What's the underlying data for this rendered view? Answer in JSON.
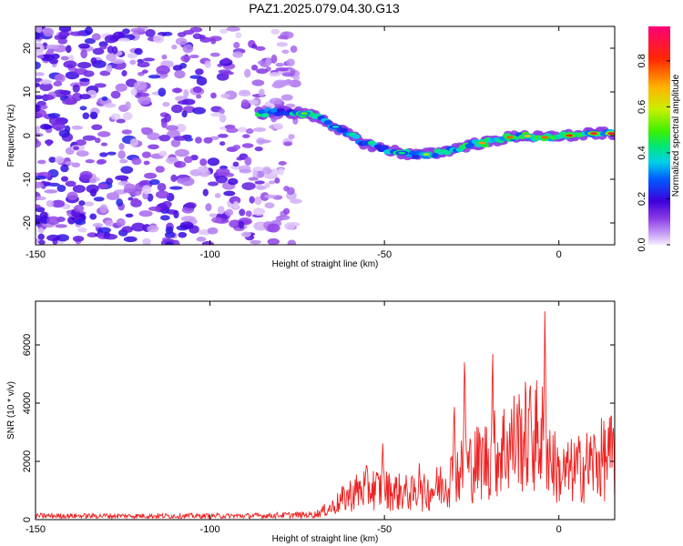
{
  "title": "PAZ1.2025.079.04.30.G13",
  "chart_data": [
    {
      "type": "heatmap",
      "xlabel": "Height of straight line (km)",
      "ylabel": "Frequency (Hz)",
      "xlim": [
        -150,
        16
      ],
      "ylim": [
        -25,
        25
      ],
      "x_ticks": [
        -150,
        -100,
        -50,
        0
      ],
      "y_ticks": [
        -20,
        -10,
        0,
        10,
        20
      ],
      "colorbar": {
        "label": "Normalized spectral amplitude",
        "range": [
          0,
          0.95
        ],
        "ticks": [
          0.0,
          0.2,
          0.4,
          0.6,
          0.8
        ]
      },
      "ridge": {
        "x": [
          -86,
          -80,
          -72,
          -66,
          -60,
          -55,
          -50,
          -45,
          -40,
          -35,
          -30,
          -25,
          -20,
          -15,
          -10,
          -5,
          0,
          5,
          10,
          16
        ],
        "y": [
          5,
          5.5,
          5,
          3,
          0,
          -2,
          -3,
          -4,
          -4.5,
          -4,
          -3,
          -2,
          -1.5,
          -0.5,
          0,
          -0.5,
          0,
          0,
          0.5,
          0.5
        ]
      },
      "noise_region_x": [
        -150,
        -75
      ]
    },
    {
      "type": "line",
      "xlabel": "Height of straight line (km)",
      "ylabel": "SNR (10 * v/v)",
      "xlim": [
        -150,
        16
      ],
      "ylim": [
        0,
        7500
      ],
      "x_ticks": [
        -150,
        -100,
        -50,
        0
      ],
      "y_ticks": [
        0,
        2000,
        4000,
        6000
      ],
      "series": [
        {
          "color": "#ee2222",
          "envelope_x": [
            -150,
            -120,
            -90,
            -70,
            -65,
            -60,
            -55,
            -50,
            -45,
            -40,
            -35,
            -30,
            -25,
            -20,
            -15,
            -10,
            -5,
            0,
            5,
            10,
            16
          ],
          "envelope_y": [
            150,
            150,
            150,
            200,
            500,
            1000,
            1300,
            1200,
            1100,
            1000,
            1300,
            1800,
            2200,
            2500,
            3000,
            3300,
            3400,
            1800,
            2000,
            2300,
            2600
          ],
          "peaks_x": [
            -50.5,
            -40,
            -30,
            -27,
            -19,
            -12,
            -8,
            -4
          ],
          "peaks_y": [
            2800,
            2000,
            4300,
            6000,
            6100,
            4200,
            3800,
            7400
          ]
        }
      ]
    }
  ]
}
